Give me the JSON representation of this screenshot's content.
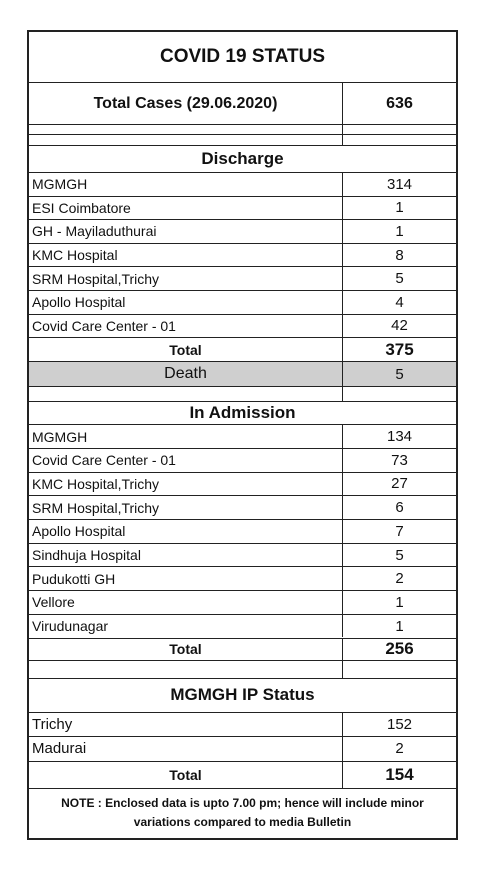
{
  "title": "COVID 19 STATUS",
  "total_cases": {
    "label": "Total Cases (29.06.2020)",
    "value": 636
  },
  "discharge": {
    "title": "Discharge",
    "rows": [
      [
        "MGMGH",
        314
      ],
      [
        "ESI Coimbatore",
        1
      ],
      [
        "GH - Mayiladuthurai",
        1
      ],
      [
        "KMC Hospital",
        8
      ],
      [
        "SRM Hospital,Trichy",
        5
      ],
      [
        "Apollo Hospital",
        4
      ],
      [
        "Covid Care Center - 01",
        42
      ]
    ],
    "total": {
      "label": "Total",
      "value": 375
    },
    "death": {
      "label": "Death",
      "value": 5
    }
  },
  "admission": {
    "title": "In Admission",
    "rows": [
      [
        "MGMGH",
        134
      ],
      [
        "Covid Care Center - 01",
        73
      ],
      [
        "KMC Hospital,Trichy",
        27
      ],
      [
        "SRM Hospital,Trichy",
        6
      ],
      [
        "Apollo Hospital",
        7
      ],
      [
        "Sindhuja Hospital",
        5
      ],
      [
        "Pudukotti GH",
        2
      ],
      [
        "Vellore",
        1
      ],
      [
        "Virudunagar",
        1
      ]
    ],
    "total": {
      "label": "Total",
      "value": 256
    }
  },
  "ip_status": {
    "title": "MGMGH  IP Status",
    "rows": [
      [
        "Trichy",
        152
      ],
      [
        "Madurai",
        2
      ]
    ],
    "total": {
      "label": "Total",
      "value": 154
    }
  },
  "note": "NOTE : Enclosed data is upto 7.00 pm; hence will include minor variations compared to media Bulletin"
}
